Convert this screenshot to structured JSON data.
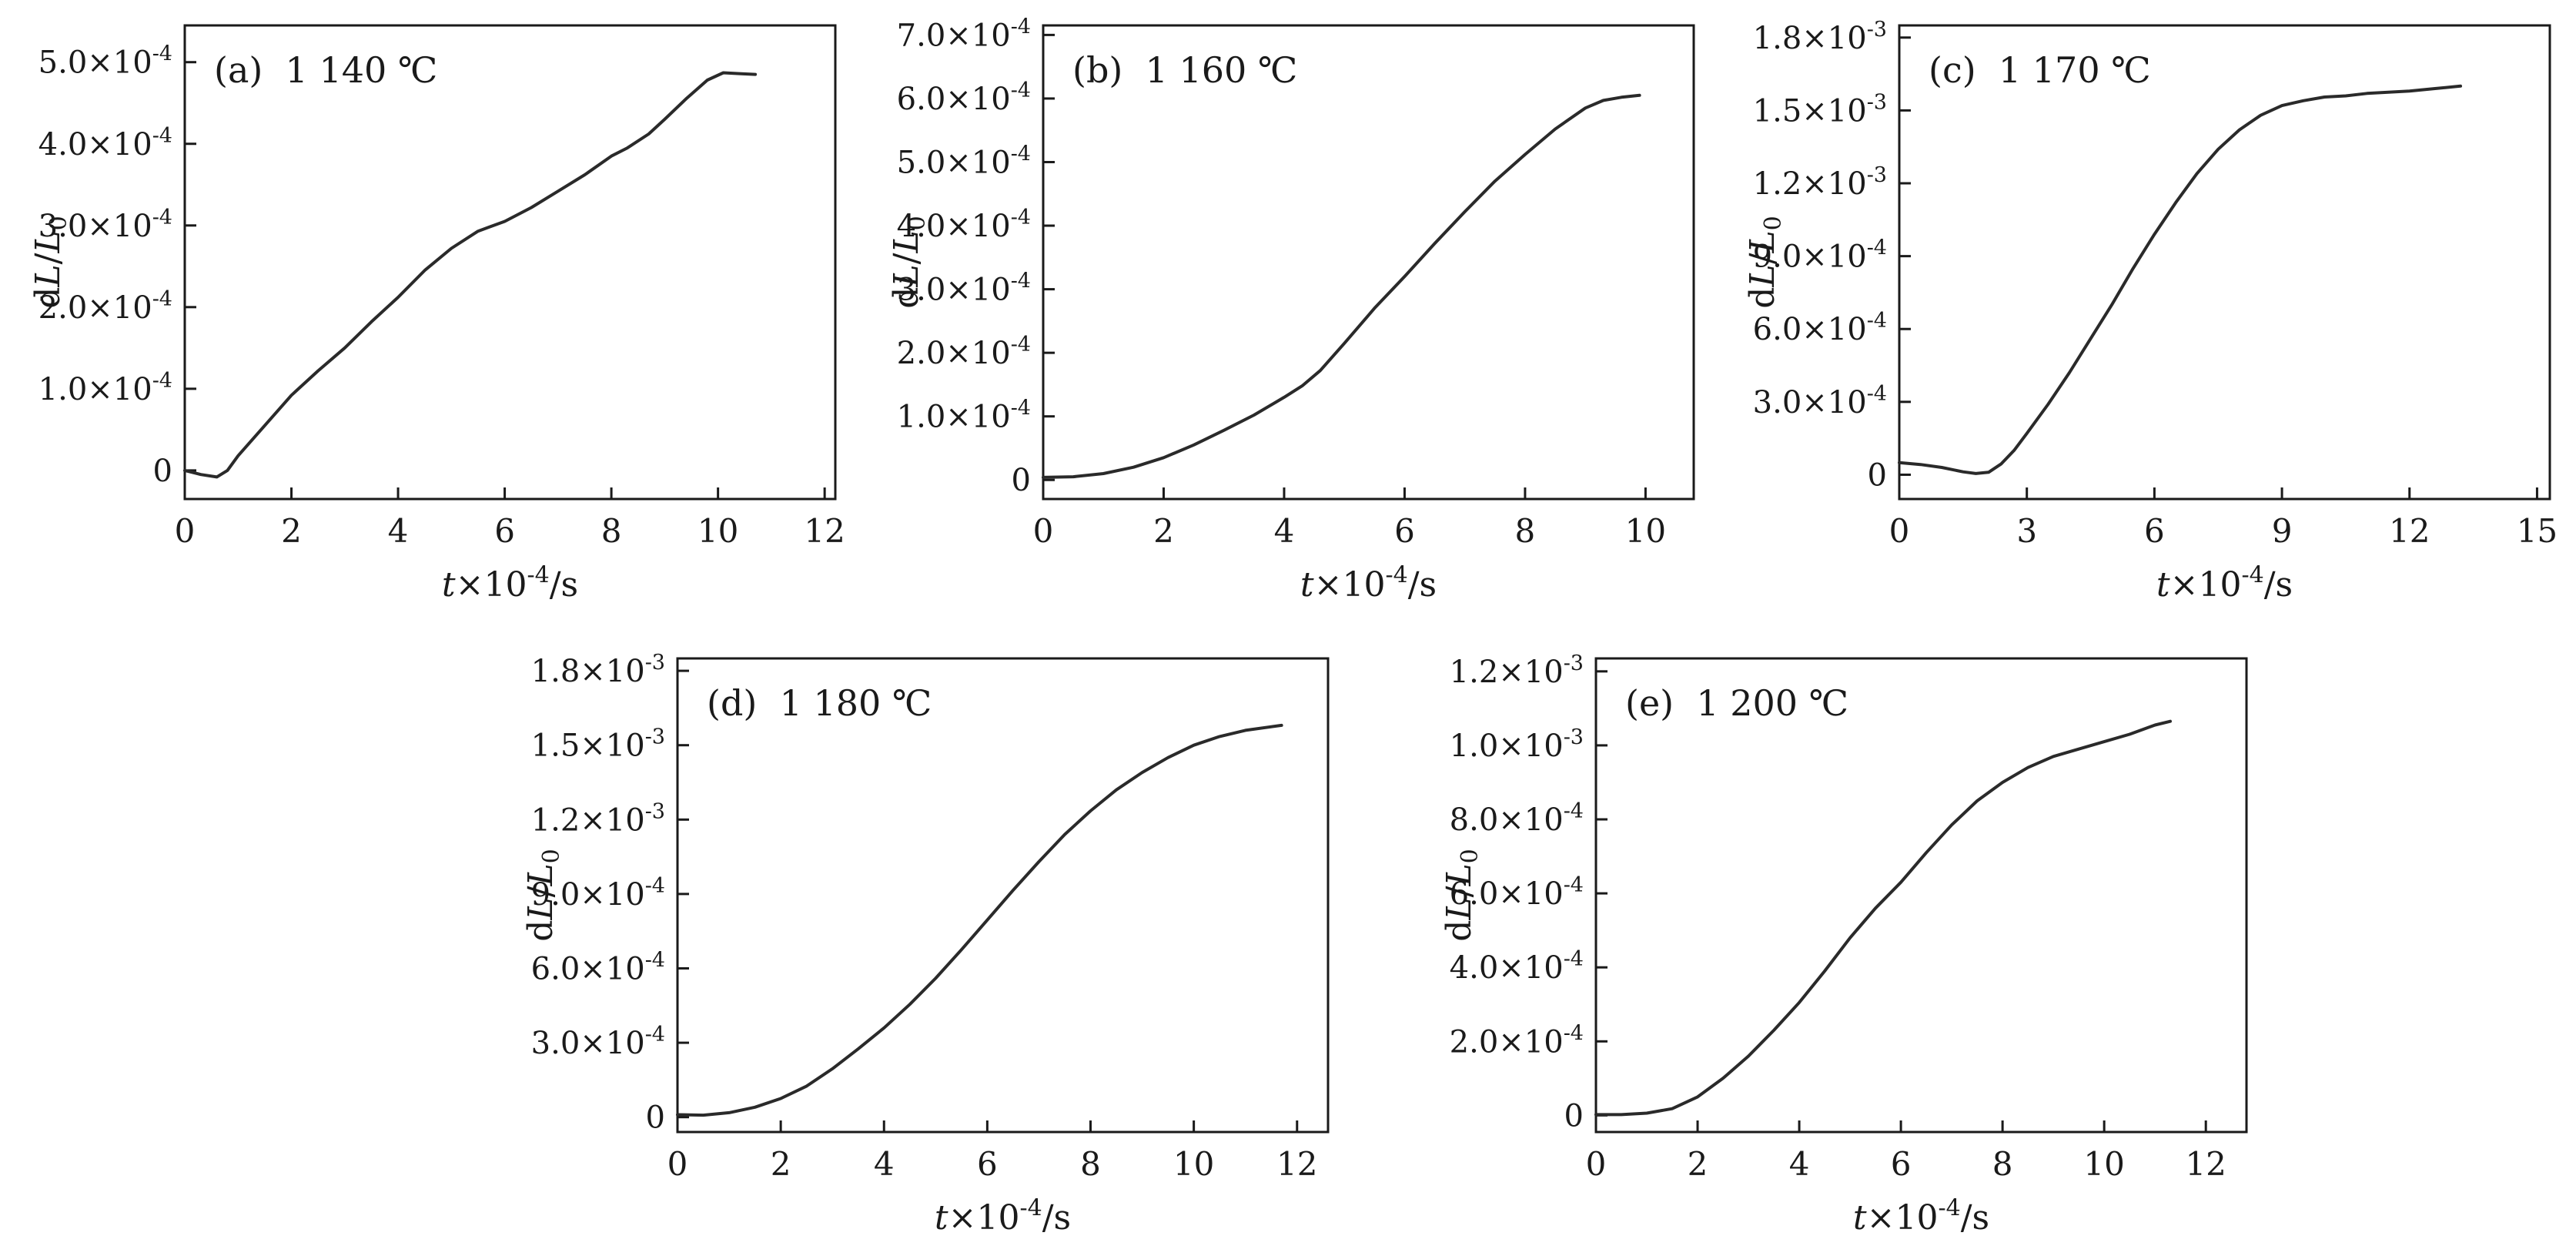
{
  "figure": {
    "background": "#ffffff",
    "text_color": "#1a1a1a",
    "line_color": "#2a2a2a",
    "note_y_values_unit": "×10⁻⁴ (dL/L0, dimensionless)"
  },
  "chart_data": [
    {
      "id": "a",
      "type": "line",
      "title": "(a)  1 140 ℃",
      "xlabel": "t×10⁻⁴/s",
      "ylabel": "dL/L₀",
      "grid": false,
      "xlim": [
        0,
        12.2
      ],
      "ylim": [
        -0.35,
        5.45
      ],
      "xticks": [
        {
          "v": 0,
          "label": "0"
        },
        {
          "v": 2,
          "label": "2"
        },
        {
          "v": 4,
          "label": "4"
        },
        {
          "v": 6,
          "label": "6"
        },
        {
          "v": 8,
          "label": "8"
        },
        {
          "v": 10,
          "label": "10"
        },
        {
          "v": 12,
          "label": "12"
        }
      ],
      "yticks": [
        {
          "v": 0,
          "label": "0"
        },
        {
          "v": 1,
          "label": "1.0×10⁻⁴"
        },
        {
          "v": 2,
          "label": "2.0×10⁻⁴"
        },
        {
          "v": 3,
          "label": "3.0×10⁻⁴"
        },
        {
          "v": 4,
          "label": "4.0×10⁻⁴"
        },
        {
          "v": 5,
          "label": "5.0×10⁻⁴"
        }
      ],
      "points": [
        [
          0,
          0
        ],
        [
          0.3,
          -0.05
        ],
        [
          0.6,
          -0.08
        ],
        [
          0.8,
          0
        ],
        [
          1,
          0.18
        ],
        [
          1.5,
          0.55
        ],
        [
          2,
          0.92
        ],
        [
          2.5,
          1.22
        ],
        [
          3,
          1.5
        ],
        [
          3.5,
          1.82
        ],
        [
          4,
          2.12
        ],
        [
          4.5,
          2.45
        ],
        [
          5,
          2.72
        ],
        [
          5.5,
          2.93
        ],
        [
          6,
          3.05
        ],
        [
          6.5,
          3.22
        ],
        [
          7,
          3.42
        ],
        [
          7.5,
          3.62
        ],
        [
          8,
          3.85
        ],
        [
          8.3,
          3.95
        ],
        [
          8.7,
          4.12
        ],
        [
          9,
          4.3
        ],
        [
          9.4,
          4.55
        ],
        [
          9.8,
          4.78
        ],
        [
          10.1,
          4.87
        ],
        [
          10.4,
          4.86
        ],
        [
          10.7,
          4.85
        ]
      ]
    },
    {
      "id": "b",
      "type": "line",
      "title": "(b)  1 160 ℃",
      "xlabel": "t×10⁻⁴/s",
      "ylabel": "dL/L₀",
      "grid": false,
      "xlim": [
        0,
        10.8
      ],
      "ylim": [
        -0.3,
        7.15
      ],
      "xticks": [
        {
          "v": 0,
          "label": "0"
        },
        {
          "v": 2,
          "label": "2"
        },
        {
          "v": 4,
          "label": "4"
        },
        {
          "v": 6,
          "label": "6"
        },
        {
          "v": 8,
          "label": "8"
        },
        {
          "v": 10,
          "label": "10"
        }
      ],
      "yticks": [
        {
          "v": 0,
          "label": "0"
        },
        {
          "v": 1,
          "label": "1.0×10⁻⁴"
        },
        {
          "v": 2,
          "label": "2.0×10⁻⁴"
        },
        {
          "v": 3,
          "label": "3.0×10⁻⁴"
        },
        {
          "v": 4,
          "label": "4.0×10⁻⁴"
        },
        {
          "v": 5,
          "label": "5.0×10⁻⁴"
        },
        {
          "v": 6,
          "label": "6.0×10⁻⁴"
        },
        {
          "v": 7,
          "label": "7.0×10⁻⁴"
        }
      ],
      "points": [
        [
          0,
          0.04
        ],
        [
          0.5,
          0.05
        ],
        [
          1,
          0.1
        ],
        [
          1.5,
          0.2
        ],
        [
          2,
          0.35
        ],
        [
          2.5,
          0.55
        ],
        [
          3,
          0.78
        ],
        [
          3.5,
          1.02
        ],
        [
          4,
          1.3
        ],
        [
          4.3,
          1.48
        ],
        [
          4.6,
          1.72
        ],
        [
          5,
          2.15
        ],
        [
          5.5,
          2.7
        ],
        [
          6,
          3.2
        ],
        [
          6.5,
          3.72
        ],
        [
          7,
          4.22
        ],
        [
          7.5,
          4.7
        ],
        [
          8,
          5.12
        ],
        [
          8.5,
          5.52
        ],
        [
          9,
          5.85
        ],
        [
          9.3,
          5.97
        ],
        [
          9.6,
          6.02
        ],
        [
          9.9,
          6.05
        ]
      ]
    },
    {
      "id": "c",
      "type": "line",
      "title": "(c)  1 170 ℃",
      "xlabel": "t×10⁻⁴/s",
      "ylabel": "dL/L₀",
      "grid": false,
      "xlim": [
        0,
        15.3
      ],
      "ylim": [
        -1.0,
        18.5
      ],
      "xticks": [
        {
          "v": 0,
          "label": "0"
        },
        {
          "v": 3,
          "label": "3"
        },
        {
          "v": 6,
          "label": "6"
        },
        {
          "v": 9,
          "label": "9"
        },
        {
          "v": 12,
          "label": "12"
        },
        {
          "v": 15,
          "label": "15"
        }
      ],
      "yticks": [
        {
          "v": 0,
          "label": "0"
        },
        {
          "v": 3,
          "label": "3.0×10⁻⁴"
        },
        {
          "v": 6,
          "label": "6.0×10⁻⁴"
        },
        {
          "v": 9,
          "label": "9.0×10⁻⁴"
        },
        {
          "v": 12,
          "label": "1.2×10⁻³"
        },
        {
          "v": 15,
          "label": "1.5×10⁻³"
        },
        {
          "v": 18,
          "label": "1.8×10⁻³"
        }
      ],
      "points": [
        [
          0,
          0.5
        ],
        [
          0.5,
          0.42
        ],
        [
          1,
          0.3
        ],
        [
          1.5,
          0.12
        ],
        [
          1.8,
          0.05
        ],
        [
          2.1,
          0.1
        ],
        [
          2.4,
          0.45
        ],
        [
          2.7,
          1.0
        ],
        [
          3,
          1.7
        ],
        [
          3.5,
          2.9
        ],
        [
          4,
          4.2
        ],
        [
          4.5,
          5.6
        ],
        [
          5,
          7.0
        ],
        [
          5.5,
          8.5
        ],
        [
          6,
          9.9
        ],
        [
          6.5,
          11.2
        ],
        [
          7,
          12.4
        ],
        [
          7.5,
          13.4
        ],
        [
          8,
          14.2
        ],
        [
          8.5,
          14.8
        ],
        [
          9,
          15.2
        ],
        [
          9.5,
          15.4
        ],
        [
          10,
          15.55
        ],
        [
          10.5,
          15.6
        ],
        [
          11,
          15.7
        ],
        [
          11.5,
          15.75
        ],
        [
          12,
          15.8
        ],
        [
          12.6,
          15.9
        ],
        [
          13.2,
          16.0
        ]
      ]
    },
    {
      "id": "d",
      "type": "line",
      "title": "(d)  1 180 ℃",
      "xlabel": "t×10⁻⁴/s",
      "ylabel": "dL/L₀",
      "grid": false,
      "xlim": [
        0,
        12.6
      ],
      "ylim": [
        -0.6,
        18.5
      ],
      "xticks": [
        {
          "v": 0,
          "label": "0"
        },
        {
          "v": 2,
          "label": "2"
        },
        {
          "v": 4,
          "label": "4"
        },
        {
          "v": 6,
          "label": "6"
        },
        {
          "v": 8,
          "label": "8"
        },
        {
          "v": 10,
          "label": "10"
        },
        {
          "v": 12,
          "label": "12"
        }
      ],
      "yticks": [
        {
          "v": 0,
          "label": "0"
        },
        {
          "v": 3,
          "label": "3.0×10⁻⁴"
        },
        {
          "v": 6,
          "label": "6.0×10⁻⁴"
        },
        {
          "v": 9,
          "label": "9.0×10⁻⁴"
        },
        {
          "v": 12,
          "label": "1.2×10⁻³"
        },
        {
          "v": 15,
          "label": "1.5×10⁻³"
        },
        {
          "v": 18,
          "label": "1.8×10⁻³"
        }
      ],
      "points": [
        [
          0,
          0.1
        ],
        [
          0.5,
          0.08
        ],
        [
          1,
          0.18
        ],
        [
          1.5,
          0.4
        ],
        [
          2,
          0.75
        ],
        [
          2.5,
          1.25
        ],
        [
          3,
          1.95
        ],
        [
          3.5,
          2.75
        ],
        [
          4,
          3.6
        ],
        [
          4.5,
          4.55
        ],
        [
          5,
          5.6
        ],
        [
          5.5,
          6.75
        ],
        [
          6,
          7.95
        ],
        [
          6.5,
          9.15
        ],
        [
          7,
          10.3
        ],
        [
          7.5,
          11.4
        ],
        [
          8,
          12.35
        ],
        [
          8.5,
          13.2
        ],
        [
          9,
          13.9
        ],
        [
          9.5,
          14.5
        ],
        [
          10,
          15.0
        ],
        [
          10.5,
          15.35
        ],
        [
          11,
          15.6
        ],
        [
          11.7,
          15.8
        ]
      ]
    },
    {
      "id": "e",
      "type": "line",
      "title": "(e)  1 200 ℃",
      "xlabel": "t×10⁻⁴/s",
      "ylabel": "dL/L₀",
      "grid": false,
      "xlim": [
        0,
        12.8
      ],
      "ylim": [
        -0.45,
        12.35
      ],
      "xticks": [
        {
          "v": 0,
          "label": "0"
        },
        {
          "v": 2,
          "label": "2"
        },
        {
          "v": 4,
          "label": "4"
        },
        {
          "v": 6,
          "label": "6"
        },
        {
          "v": 8,
          "label": "8"
        },
        {
          "v": 10,
          "label": "10"
        },
        {
          "v": 12,
          "label": "12"
        }
      ],
      "yticks": [
        {
          "v": 0,
          "label": "0"
        },
        {
          "v": 2,
          "label": "2.0×10⁻⁴"
        },
        {
          "v": 4,
          "label": "4.0×10⁻⁴"
        },
        {
          "v": 6,
          "label": "6.0×10⁻⁴"
        },
        {
          "v": 8,
          "label": "8.0×10⁻⁴"
        },
        {
          "v": 10,
          "label": "1.0×10⁻³"
        },
        {
          "v": 12,
          "label": "1.2×10⁻³"
        }
      ],
      "points": [
        [
          0,
          0.02
        ],
        [
          0.5,
          0.02
        ],
        [
          1,
          0.06
        ],
        [
          1.5,
          0.18
        ],
        [
          2,
          0.5
        ],
        [
          2.5,
          1.0
        ],
        [
          3,
          1.6
        ],
        [
          3.5,
          2.3
        ],
        [
          4,
          3.05
        ],
        [
          4.5,
          3.9
        ],
        [
          5,
          4.8
        ],
        [
          5.5,
          5.6
        ],
        [
          6,
          6.3
        ],
        [
          6.5,
          7.1
        ],
        [
          7,
          7.85
        ],
        [
          7.5,
          8.5
        ],
        [
          8,
          9.0
        ],
        [
          8.5,
          9.4
        ],
        [
          9,
          9.7
        ],
        [
          9.5,
          9.9
        ],
        [
          10,
          10.1
        ],
        [
          10.5,
          10.3
        ],
        [
          11,
          10.55
        ],
        [
          11.3,
          10.65
        ]
      ]
    }
  ]
}
